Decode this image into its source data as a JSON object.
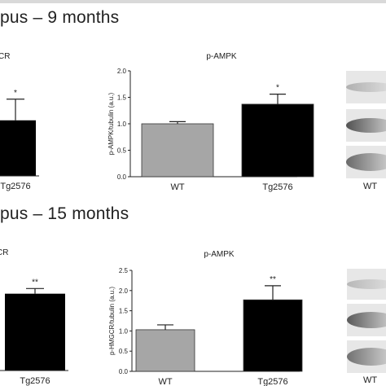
{
  "section_9m": {
    "title": "pus – 9 months"
  },
  "section_15m": {
    "title": "pus – 15 months"
  },
  "chart_data": [
    {
      "id": "hmgcr_9m",
      "type": "bar",
      "title": "CR",
      "categories": [
        "Tg2576"
      ],
      "values": [
        1.05
      ],
      "errors": [
        0.4
      ],
      "significance": [
        "*"
      ],
      "colors": [
        "#000000"
      ]
    },
    {
      "id": "pampk_9m",
      "type": "bar",
      "title": "p-AMPK",
      "ylabel": "p-AMPK/tubulin (a.u.)",
      "ylim": [
        0,
        2.0
      ],
      "yticks": [
        "0.0",
        "0.5",
        "1.0",
        "1.5",
        "2.0"
      ],
      "categories": [
        "WT",
        "Tg2576"
      ],
      "values": [
        1.0,
        1.37
      ],
      "errors": [
        0.04,
        0.19
      ],
      "significance": [
        "",
        "*"
      ],
      "colors": [
        "#a6a6a6",
        "#000000"
      ]
    },
    {
      "id": "western_9m",
      "type": "blot",
      "label": "WT"
    },
    {
      "id": "hmgcr_15m",
      "type": "bar",
      "title": "CR",
      "categories": [
        "Tg2576"
      ],
      "values": [
        1.78
      ],
      "errors": [
        0.12
      ],
      "significance": [
        "**"
      ],
      "colors": [
        "#000000"
      ]
    },
    {
      "id": "pampk_15m",
      "type": "bar",
      "title": "p-AMPK",
      "ylabel": "p-HMGCR/tubulin (a.u.)",
      "ylim": [
        0,
        2.5
      ],
      "yticks": [
        "0.0",
        "0.5",
        "1.0",
        "1.5",
        "2.0",
        "2.5"
      ],
      "categories": [
        "WT",
        "Tg2576"
      ],
      "values": [
        1.03,
        1.77
      ],
      "errors": [
        0.12,
        0.35
      ],
      "significance": [
        "",
        "**"
      ],
      "colors": [
        "#a6a6a6",
        "#000000"
      ]
    },
    {
      "id": "western_15m",
      "type": "blot",
      "label": "WT"
    }
  ]
}
